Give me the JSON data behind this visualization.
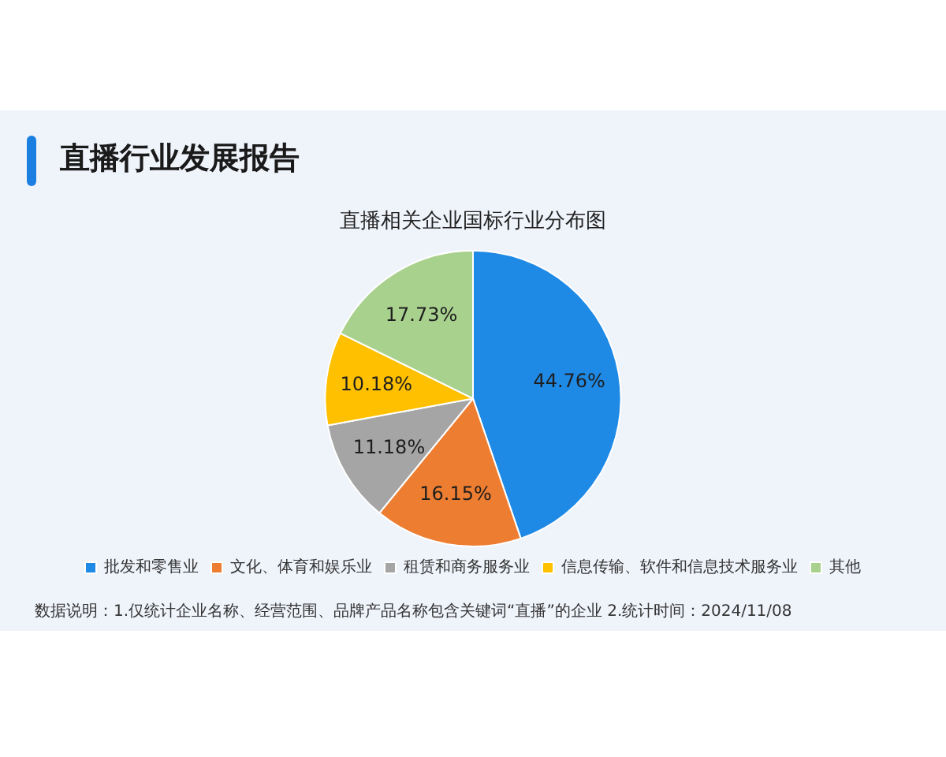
{
  "chart_data": {
    "type": "pie",
    "title": "直播行业发展报告",
    "subtitle": "直播相关企业国标行业分布图",
    "categories": [
      "批发和零售业",
      "文化、体育和娱乐业",
      "租赁和商务服务业",
      "信息传输、软件和信息技术服务业",
      "其他"
    ],
    "values": [
      44.76,
      16.15,
      11.18,
      10.18,
      17.73
    ],
    "colors": [
      "#1f8ae6",
      "#ed7d31",
      "#a5a5a5",
      "#ffc000",
      "#a9d18e"
    ],
    "value_labels": [
      "44.76%",
      "16.15%",
      "11.18%",
      "10.18%",
      "17.73%"
    ],
    "legend": "bottom",
    "annotations": [
      "数据说明：1.仅统计企业名称、经营范围、品牌产品名称包含关键词“直播”的企业 2.统计时间：2024/11/08"
    ]
  }
}
